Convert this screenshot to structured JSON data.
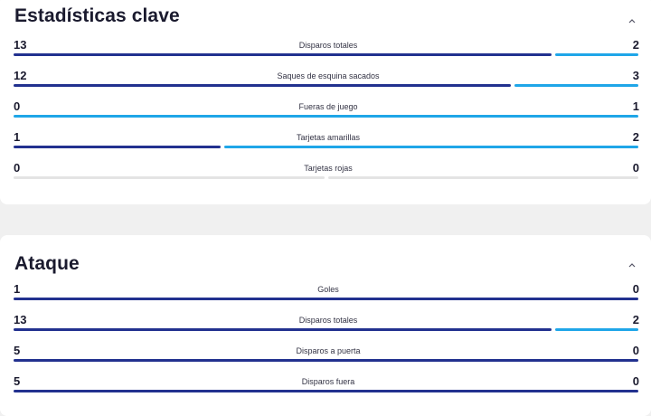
{
  "colors": {
    "home_bar": "#22318f",
    "away_bar": "#1fa6e8",
    "empty_bar": "#e4e4e4"
  },
  "sections": [
    {
      "title": "Estadísticas clave",
      "collapse_icon": "chevron-up-icon",
      "stats": [
        {
          "label": "Disparos totales",
          "home": "13",
          "away": "2"
        },
        {
          "label": "Saques de esquina sacados",
          "home": "12",
          "away": "3"
        },
        {
          "label": "Fueras de juego",
          "home": "0",
          "away": "1"
        },
        {
          "label": "Tarjetas amarillas",
          "home": "1",
          "away": "2"
        },
        {
          "label": "Tarjetas rojas",
          "home": "0",
          "away": "0"
        }
      ]
    },
    {
      "title": "Ataque",
      "collapse_icon": "chevron-up-icon",
      "stats": [
        {
          "label": "Goles",
          "home": "1",
          "away": "0"
        },
        {
          "label": "Disparos totales",
          "home": "13",
          "away": "2"
        },
        {
          "label": "Disparos a puerta",
          "home": "5",
          "away": "0"
        },
        {
          "label": "Disparos fuera",
          "home": "5",
          "away": "0"
        }
      ]
    }
  ]
}
